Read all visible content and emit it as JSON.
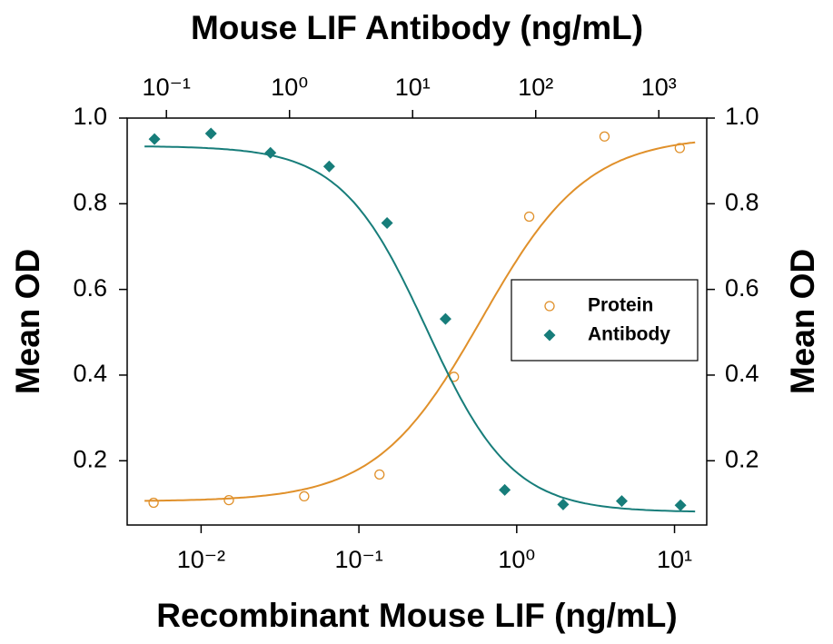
{
  "chart_data": {
    "type": "scatter",
    "title": "Mouse LIF Antibody (ng/mL)",
    "x_label": "Recombinant Mouse LIF (ng/mL)",
    "y_label": "Mean OD",
    "y2_label": "Mean OD",
    "xscale": "log",
    "x2scale": "log",
    "xlim": [
      0.0034,
      16
    ],
    "x2lim": [
      0.048,
      2450
    ],
    "xticks": [
      {
        "value": 0.01,
        "label": "10⁻²"
      },
      {
        "value": 0.1,
        "label": "10⁻¹"
      },
      {
        "value": 1,
        "label": "10⁰"
      },
      {
        "value": 10,
        "label": "10¹"
      }
    ],
    "x2ticks": [
      {
        "value": 0.1,
        "label": "10⁻¹"
      },
      {
        "value": 1,
        "label": "10⁰"
      },
      {
        "value": 10,
        "label": "10¹"
      },
      {
        "value": 100,
        "label": "10²"
      },
      {
        "value": 1000,
        "label": "10³"
      }
    ],
    "ylim": [
      0.05,
      1.0
    ],
    "yticks": [
      0.2,
      0.4,
      0.6,
      0.8,
      {
        "value": 1,
        "label": "1.0"
      }
    ],
    "y2lim": [
      0.05,
      1.0
    ],
    "y2ticks": [
      0.2,
      0.4,
      0.6,
      0.8,
      {
        "value": 1,
        "label": "1.0"
      }
    ],
    "legend": "center right",
    "series": [
      {
        "name": "Protein",
        "color": "#e0902a",
        "marker": "open-circle",
        "axis": "x",
        "x": [
          0.005,
          0.015,
          0.045,
          0.135,
          0.4,
          1.2,
          3.6,
          10.8
        ],
        "values": [
          0.102,
          0.108,
          0.117,
          0.168,
          0.396,
          0.77,
          0.957,
          0.93
        ],
        "fit": {
          "bottom": 0.105,
          "top": 0.958,
          "ec50": 0.6,
          "hill": 1.3
        }
      },
      {
        "name": "Antibody",
        "color": "#177d7a",
        "marker": "diamond",
        "axis": "x2",
        "x": [
          0.08,
          0.23,
          0.7,
          2.1,
          6.2,
          18.5,
          56,
          167,
          500,
          1500
        ],
        "values": [
          0.951,
          0.964,
          0.919,
          0.887,
          0.755,
          0.531,
          0.132,
          0.098,
          0.106,
          0.096
        ],
        "fit": {
          "bottom": 0.08,
          "top": 0.935,
          "ec50": 13,
          "hill": -1.25
        }
      }
    ]
  }
}
